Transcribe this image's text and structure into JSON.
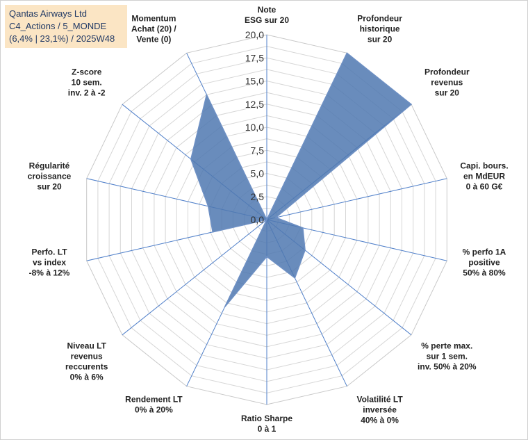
{
  "title_box": {
    "line1": "Qantas Airways Ltd",
    "line2": "C4_Actions / 5_MONDE",
    "line3": "(6,4% | 23,1%) / 2025W48"
  },
  "chart_data": {
    "type": "radar",
    "range": [
      0,
      20
    ],
    "ticks": [
      "0,0",
      "2,5",
      "5,0",
      "7,5",
      "10,0",
      "12,5",
      "15,0",
      "17,5",
      "20,0"
    ],
    "axes": [
      [
        "Note",
        "ESG sur 20"
      ],
      [
        "Profondeur",
        "historique",
        "sur 20"
      ],
      [
        "Profondeur",
        "revenus",
        "sur 20"
      ],
      [
        "Capi. bours.",
        "en MdEUR",
        "0 à 60 G€"
      ],
      [
        "% perfo 1A",
        "positive",
        "50% à 80%"
      ],
      [
        "% perte max.",
        "sur 1 sem.",
        "inv. 50% à 20%"
      ],
      [
        "Volatilité LT",
        "inversée",
        "40% à 0%"
      ],
      [
        "Ratio Sharpe",
        "0 à 1"
      ],
      [
        "Rendement LT",
        "0% à 20%"
      ],
      [
        "Niveau LT",
        "revenus",
        "reccurents",
        "0% à 6%"
      ],
      [
        "Perfo. LT",
        "vs index",
        "-8% à 12%"
      ],
      [
        "Régularité",
        "croissance",
        "sur 20"
      ],
      [
        "Z-score",
        "10 sem.",
        "inv. 2 à -2"
      ],
      [
        "Momentum",
        "Achat (20) /",
        "Vente (0)"
      ]
    ],
    "values": [
      0,
      20,
      20,
      1,
      4,
      5.3,
      7,
      4,
      10.5,
      0,
      6,
      6.5,
      10.5,
      15
    ],
    "grid": true,
    "colors": {
      "fill": "#4f78b0",
      "stroke": "#6e90c4",
      "grid": "#d6d6d6",
      "spoke": "#4f7fc9"
    }
  }
}
